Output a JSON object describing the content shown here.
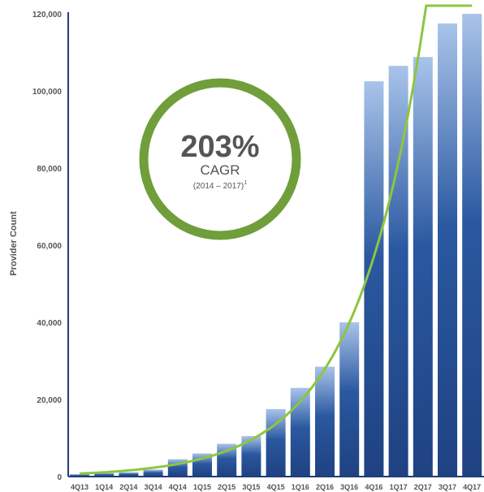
{
  "chart_data": {
    "type": "bar",
    "title": "",
    "xlabel": "",
    "ylabel": "Provider Count",
    "ylim": [
      0,
      120000
    ],
    "yticks": [
      0,
      20000,
      40000,
      60000,
      80000,
      100000,
      120000
    ],
    "ytick_labels": [
      "0",
      "20,000",
      "40,000",
      "60,000",
      "80,000",
      "100,000",
      "120,000"
    ],
    "categories": [
      "4Q13",
      "1Q14",
      "2Q14",
      "3Q14",
      "4Q14",
      "1Q15",
      "2Q15",
      "3Q15",
      "4Q15",
      "1Q16",
      "2Q16",
      "3Q16",
      "4Q16",
      "1Q17",
      "2Q17",
      "3Q17",
      "4Q17"
    ],
    "values": [
      600,
      900,
      1100,
      1800,
      4500,
      6000,
      8500,
      10500,
      17500,
      23000,
      28500,
      40000,
      102500,
      106500,
      108800,
      117500,
      120000
    ],
    "trendline": {
      "type": "exponential",
      "color": "#8dc63f"
    },
    "grid": false,
    "colors": {
      "bar_dark": "#1f4282",
      "bar_light": "#a9c4ea",
      "axis": "#1f3e7a",
      "circle": "#6f9e3a",
      "text": "#555555"
    },
    "annotation": {
      "value": "203%",
      "label": "CAGR",
      "sub": "(2014 – 2017)",
      "footnote": "1"
    }
  }
}
